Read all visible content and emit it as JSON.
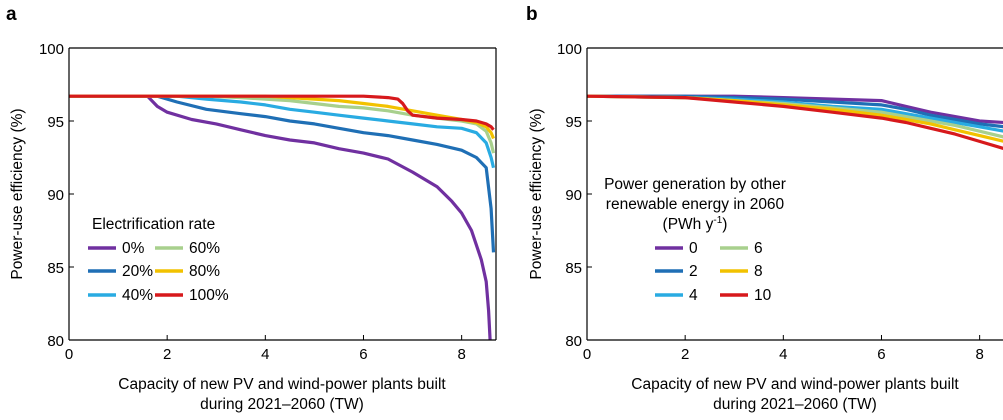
{
  "chart_data": [
    {
      "panel": "a",
      "type": "line",
      "xlabel_lines": [
        "Capacity of new PV and wind-power plants built",
        "during 2021–2060 (TW)"
      ],
      "ylabel": "Power-use efficiency (%)",
      "xlim": [
        0,
        8.7
      ],
      "ylim": [
        80,
        100
      ],
      "xticks": [
        0,
        2,
        4,
        6,
        8
      ],
      "yticks": [
        80,
        85,
        90,
        95,
        100
      ],
      "grid": false,
      "legend_title": "Electrification rate",
      "legend_location": "lower-left",
      "series": [
        {
          "name": "0%",
          "color": "#7030a0",
          "x": [
            0,
            1.6,
            1.8,
            2.0,
            2.5,
            3,
            3.5,
            4,
            4.5,
            5,
            5.5,
            6,
            6.5,
            7,
            7.5,
            7.8,
            8,
            8.2,
            8.4,
            8.5,
            8.55,
            8.58
          ],
          "y": [
            96.7,
            96.7,
            96.0,
            95.6,
            95.1,
            94.8,
            94.4,
            94.0,
            93.7,
            93.5,
            93.1,
            92.8,
            92.4,
            91.5,
            90.5,
            89.5,
            88.7,
            87.5,
            85.5,
            84.0,
            82.0,
            80.0
          ]
        },
        {
          "name": "20%",
          "color": "#1f6fb5",
          "x": [
            0,
            1.8,
            2.2,
            2.8,
            3.5,
            4,
            4.5,
            5,
            5.5,
            6,
            6.5,
            7,
            7.5,
            8,
            8.3,
            8.5,
            8.6,
            8.65
          ],
          "y": [
            96.7,
            96.7,
            96.3,
            95.8,
            95.5,
            95.3,
            95.0,
            94.8,
            94.5,
            94.2,
            94.0,
            93.7,
            93.4,
            93.0,
            92.5,
            91.8,
            89.0,
            86.0
          ]
        },
        {
          "name": "40%",
          "color": "#29abe2",
          "x": [
            0,
            2.2,
            2.8,
            3.5,
            4,
            4.5,
            5,
            5.5,
            6,
            6.5,
            7,
            7.5,
            8,
            8.3,
            8.5,
            8.6,
            8.65
          ],
          "y": [
            96.7,
            96.7,
            96.5,
            96.3,
            96.1,
            95.8,
            95.6,
            95.4,
            95.2,
            95.0,
            94.8,
            94.6,
            94.5,
            94.2,
            93.5,
            92.5,
            91.8
          ]
        },
        {
          "name": "60%",
          "color": "#a8d08d",
          "x": [
            0,
            2.8,
            3.5,
            4,
            4.5,
            5,
            5.5,
            6,
            6.5,
            7,
            7.5,
            8,
            8.3,
            8.5,
            8.6,
            8.65
          ],
          "y": [
            96.7,
            96.7,
            96.6,
            96.5,
            96.4,
            96.2,
            96.0,
            95.9,
            95.7,
            95.4,
            95.2,
            95.0,
            94.8,
            94.3,
            93.5,
            92.8
          ]
        },
        {
          "name": "80%",
          "color": "#f2c200",
          "x": [
            0,
            3.5,
            4,
            4.5,
            5,
            5.5,
            6,
            6.5,
            7,
            7.5,
            8,
            8.3,
            8.5,
            8.6,
            8.65
          ],
          "y": [
            96.7,
            96.7,
            96.7,
            96.6,
            96.5,
            96.4,
            96.2,
            96.0,
            95.7,
            95.4,
            95.1,
            94.9,
            94.6,
            94.2,
            93.8
          ]
        },
        {
          "name": "100%",
          "color": "#d7191c",
          "x": [
            0,
            4,
            5,
            6,
            6.5,
            6.7,
            6.8,
            6.9,
            7.0,
            7.5,
            8,
            8.3,
            8.5,
            8.6,
            8.65
          ],
          "y": [
            96.7,
            96.7,
            96.7,
            96.7,
            96.6,
            96.5,
            96.2,
            95.7,
            95.4,
            95.2,
            95.1,
            95.0,
            94.8,
            94.6,
            94.4
          ]
        }
      ]
    },
    {
      "panel": "b",
      "type": "line",
      "xlabel_lines": [
        "Capacity of new PV and wind-power plants built",
        "during 2021–2060 (TW)"
      ],
      "ylabel": "Power-use efficiency (%)",
      "xlim": [
        0,
        8.7
      ],
      "ylim": [
        80,
        100
      ],
      "xticks": [
        0,
        2,
        4,
        6,
        8
      ],
      "yticks": [
        80,
        85,
        90,
        95,
        100
      ],
      "grid": false,
      "legend_title_lines": [
        "Power generation by other",
        "renewable energy in 2060",
        "(PWh y",
        "-1",
        ")"
      ],
      "legend_location": "lower-left",
      "series": [
        {
          "name": "0",
          "color": "#7030a0",
          "x": [
            0,
            2,
            3,
            4,
            5,
            6,
            6.5,
            7,
            7.5,
            8,
            8.5,
            8.7
          ],
          "y": [
            96.7,
            96.7,
            96.7,
            96.6,
            96.5,
            96.4,
            96.0,
            95.6,
            95.3,
            95.0,
            94.9,
            94.7
          ]
        },
        {
          "name": "2",
          "color": "#1f6fb5",
          "x": [
            0,
            2,
            3,
            4,
            5,
            6,
            6.5,
            7,
            7.5,
            8,
            8.5,
            8.7
          ],
          "y": [
            96.7,
            96.7,
            96.6,
            96.5,
            96.3,
            96.1,
            95.8,
            95.4,
            95.1,
            94.8,
            94.6,
            94.3
          ]
        },
        {
          "name": "4",
          "color": "#29abe2",
          "x": [
            0,
            2,
            3,
            4,
            5,
            6,
            6.5,
            7,
            7.5,
            8,
            8.5,
            8.7
          ],
          "y": [
            96.7,
            96.6,
            96.5,
            96.3,
            96.0,
            95.8,
            95.5,
            95.2,
            94.9,
            94.6,
            94.3,
            94.0
          ]
        },
        {
          "name": "6",
          "color": "#a8d08d",
          "x": [
            0,
            2,
            3,
            4,
            5,
            6,
            6.5,
            7,
            7.5,
            8,
            8.5,
            8.7
          ],
          "y": [
            96.7,
            96.6,
            96.4,
            96.2,
            95.9,
            95.6,
            95.3,
            95.0,
            94.7,
            94.3,
            93.9,
            93.5
          ]
        },
        {
          "name": "8",
          "color": "#f2c200",
          "x": [
            0,
            2,
            3,
            4,
            5,
            6,
            6.5,
            7,
            7.5,
            8,
            8.5,
            8.7
          ],
          "y": [
            96.7,
            96.6,
            96.4,
            96.1,
            95.8,
            95.4,
            95.1,
            94.8,
            94.4,
            94.0,
            93.6,
            93.1
          ]
        },
        {
          "name": "10",
          "color": "#d7191c",
          "x": [
            0,
            2,
            3,
            4,
            5,
            6,
            6.5,
            7,
            7.5,
            8,
            8.5,
            8.7
          ],
          "y": [
            96.7,
            96.6,
            96.3,
            96.0,
            95.6,
            95.2,
            94.9,
            94.5,
            94.1,
            93.6,
            93.1,
            92.7
          ]
        }
      ]
    }
  ]
}
